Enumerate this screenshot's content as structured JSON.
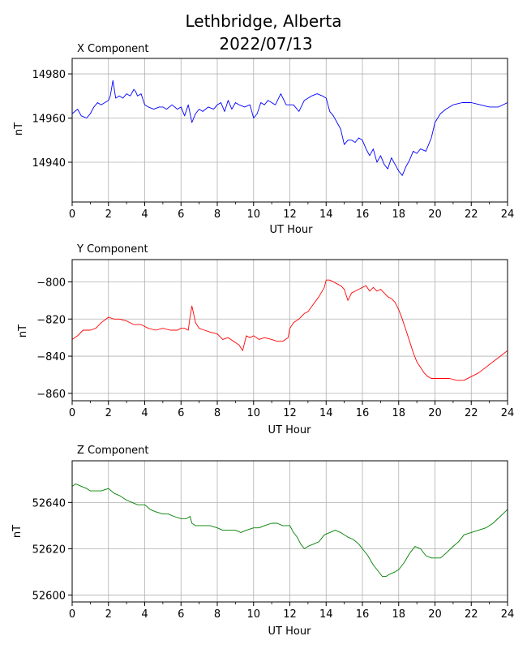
{
  "figure": {
    "title_line1": "Lethbridge, Alberta",
    "title_line2": "2022/07/13"
  },
  "chart_data": [
    {
      "type": "line",
      "title": "X Component",
      "xlabel": "UT Hour",
      "ylabel": "nT",
      "color": "#0000ff",
      "xlim": [
        0,
        24
      ],
      "ylim": [
        14922,
        14987
      ],
      "xticks": [
        0,
        2,
        4,
        6,
        8,
        10,
        12,
        14,
        16,
        18,
        20,
        22,
        24
      ],
      "yticks": [
        14940,
        14960,
        14980
      ],
      "grid": true,
      "series": [
        {
          "x": [
            0,
            0.3,
            0.5,
            0.8,
            1.0,
            1.2,
            1.4,
            1.6,
            1.8,
            2.0,
            2.1,
            2.25,
            2.4,
            2.6,
            2.8,
            3.0,
            3.2,
            3.4,
            3.5,
            3.6,
            3.8,
            4.0,
            4.2,
            4.5,
            4.8,
            5.0,
            5.2,
            5.5,
            5.8,
            6.0,
            6.2,
            6.4,
            6.6,
            6.8,
            7.0,
            7.2,
            7.5,
            7.8,
            8.0,
            8.2,
            8.4,
            8.6,
            8.8,
            9.0,
            9.2,
            9.5,
            9.8,
            10.0,
            10.2,
            10.4,
            10.6,
            10.8,
            11.0,
            11.2,
            11.5,
            11.8,
            12.0,
            12.2,
            12.5,
            12.8,
            13.0,
            13.2,
            13.5,
            13.8,
            14.0,
            14.2,
            14.4,
            14.6,
            14.8,
            15.0,
            15.2,
            15.4,
            15.6,
            15.8,
            16.0,
            16.2,
            16.4,
            16.6,
            16.8,
            17.0,
            17.2,
            17.4,
            17.6,
            17.8,
            18.0,
            18.2,
            18.4,
            18.6,
            18.8,
            19.0,
            19.2,
            19.5,
            19.8,
            20.0,
            20.3,
            20.6,
            21.0,
            21.5,
            22.0,
            22.5,
            23.0,
            23.5,
            24.0
          ],
          "y": [
            14962,
            14964,
            14961,
            14960,
            14962,
            14965,
            14967,
            14966,
            14967,
            14968,
            14970,
            14977,
            14969,
            14970,
            14969,
            14971,
            14970,
            14973,
            14972,
            14970,
            14971,
            14966,
            14965,
            14964,
            14965,
            14965,
            14964,
            14966,
            14964,
            14965,
            14961,
            14966,
            14958,
            14962,
            14964,
            14963,
            14965,
            14964,
            14966,
            14967,
            14963,
            14968,
            14964,
            14967,
            14966,
            14965,
            14966,
            14960,
            14962,
            14967,
            14966,
            14968,
            14967,
            14966,
            14971,
            14966,
            14966,
            14966,
            14963,
            14968,
            14969,
            14970,
            14971,
            14970,
            14969,
            14963,
            14961,
            14958,
            14955,
            14948,
            14950,
            14950,
            14949,
            14951,
            14950,
            14946,
            14943,
            14946,
            14940,
            14943,
            14939,
            14937,
            14942,
            14939,
            14936,
            14934,
            14938,
            14941,
            14945,
            14944,
            14946,
            14945,
            14951,
            14958,
            14962,
            14964,
            14966,
            14967,
            14967,
            14966,
            14965,
            14965,
            14967
          ]
        }
      ]
    },
    {
      "type": "line",
      "title": "Y Component",
      "xlabel": "UT Hour",
      "ylabel": "nT",
      "color": "#ff0000",
      "xlim": [
        0,
        24
      ],
      "ylim": [
        -864,
        -788
      ],
      "xticks": [
        0,
        2,
        4,
        6,
        8,
        10,
        12,
        14,
        16,
        18,
        20,
        22,
        24
      ],
      "yticks": [
        -800,
        -820,
        -840,
        -860
      ],
      "grid": true,
      "series": [
        {
          "x": [
            0,
            0.3,
            0.6,
            1.0,
            1.3,
            1.6,
            2.0,
            2.3,
            2.6,
            3.0,
            3.4,
            3.8,
            4.2,
            4.6,
            5.0,
            5.4,
            5.8,
            6.0,
            6.2,
            6.4,
            6.5,
            6.6,
            6.8,
            7.0,
            7.3,
            7.6,
            8.0,
            8.3,
            8.6,
            8.9,
            9.2,
            9.4,
            9.6,
            9.8,
            10.0,
            10.3,
            10.6,
            11.0,
            11.3,
            11.6,
            11.9,
            12.0,
            12.2,
            12.5,
            12.8,
            13.0,
            13.3,
            13.6,
            13.9,
            14.0,
            14.2,
            14.4,
            14.6,
            14.8,
            15.0,
            15.2,
            15.4,
            15.6,
            15.8,
            16.0,
            16.2,
            16.4,
            16.6,
            16.8,
            17.0,
            17.2,
            17.4,
            17.6,
            17.8,
            18.0,
            18.2,
            18.4,
            18.6,
            18.8,
            19.0,
            19.2,
            19.4,
            19.6,
            19.8,
            20.0,
            20.4,
            20.8,
            21.2,
            21.6,
            22.0,
            22.4,
            22.8,
            23.2,
            23.6,
            24.0
          ],
          "y": [
            -831,
            -829,
            -826,
            -826,
            -825,
            -822,
            -819,
            -820,
            -820,
            -821,
            -823,
            -823,
            -825,
            -826,
            -825,
            -826,
            -826,
            -825,
            -825,
            -826,
            -819,
            -813,
            -822,
            -825,
            -826,
            -827,
            -828,
            -831,
            -830,
            -832,
            -834,
            -837,
            -829,
            -830,
            -829,
            -831,
            -830,
            -831,
            -832,
            -832,
            -830,
            -825,
            -822,
            -820,
            -817,
            -816,
            -812,
            -808,
            -803,
            -799,
            -799,
            -800,
            -801,
            -802,
            -804,
            -810,
            -806,
            -805,
            -804,
            -803,
            -802,
            -805,
            -803,
            -805,
            -804,
            -806,
            -808,
            -809,
            -811,
            -815,
            -820,
            -826,
            -832,
            -838,
            -843,
            -846,
            -849,
            -851,
            -852,
            -852,
            -852,
            -852,
            -853,
            -853,
            -851,
            -849,
            -846,
            -843,
            -840,
            -837
          ]
        }
      ]
    },
    {
      "type": "line",
      "title": "Z Component",
      "xlabel": "UT Hour",
      "ylabel": "nT",
      "color": "#008000",
      "xlim": [
        0,
        24
      ],
      "ylim": [
        52597,
        52658
      ],
      "xticks": [
        0,
        2,
        4,
        6,
        8,
        10,
        12,
        14,
        16,
        18,
        20,
        22,
        24
      ],
      "yticks": [
        52600,
        52620,
        52640
      ],
      "grid": true,
      "series": [
        {
          "x": [
            0,
            0.2,
            0.5,
            0.8,
            1.0,
            1.3,
            1.6,
            2.0,
            2.3,
            2.6,
            3.0,
            3.3,
            3.6,
            4.0,
            4.3,
            4.6,
            5.0,
            5.3,
            5.6,
            6.0,
            6.3,
            6.5,
            6.6,
            6.8,
            7.0,
            7.3,
            7.6,
            8.0,
            8.3,
            8.6,
            9.0,
            9.3,
            9.6,
            10.0,
            10.3,
            10.6,
            11.0,
            11.3,
            11.6,
            12.0,
            12.2,
            12.4,
            12.6,
            12.8,
            13.0,
            13.3,
            13.6,
            13.9,
            14.2,
            14.5,
            14.8,
            15.0,
            15.2,
            15.5,
            15.8,
            16.0,
            16.3,
            16.6,
            16.9,
            17.1,
            17.3,
            17.5,
            17.8,
            18.0,
            18.3,
            18.6,
            18.9,
            19.2,
            19.5,
            19.8,
            20.0,
            20.3,
            20.6,
            21.0,
            21.3,
            21.6,
            22.0,
            22.4,
            22.8,
            23.2,
            23.6,
            24.0
          ],
          "y": [
            52647,
            52648,
            52647,
            52646,
            52645,
            52645,
            52645,
            52646,
            52644,
            52643,
            52641,
            52640,
            52639,
            52639,
            52637,
            52636,
            52635,
            52635,
            52634,
            52633,
            52633,
            52634,
            52631,
            52630,
            52630,
            52630,
            52630,
            52629,
            52628,
            52628,
            52628,
            52627,
            52628,
            52629,
            52629,
            52630,
            52631,
            52631,
            52630,
            52630,
            52627,
            52625,
            52622,
            52620,
            52621,
            52622,
            52623,
            52626,
            52627,
            52628,
            52627,
            52626,
            52625,
            52624,
            52622,
            52620,
            52617,
            52613,
            52610,
            52608,
            52608,
            52609,
            52610,
            52611,
            52614,
            52618,
            52621,
            52620,
            52617,
            52616,
            52616,
            52616,
            52618,
            52621,
            52623,
            52626,
            52627,
            52628,
            52629,
            52631,
            52634,
            52637
          ]
        }
      ]
    }
  ]
}
